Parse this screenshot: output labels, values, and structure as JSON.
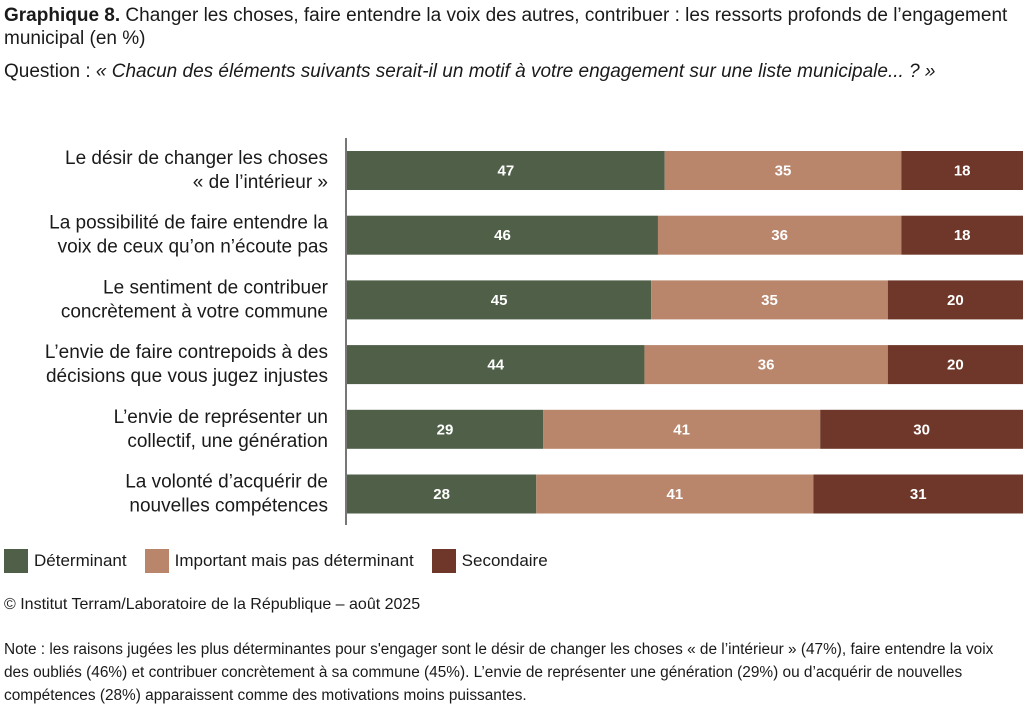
{
  "header": {
    "title_bold": "Graphique 8.",
    "title_rest": " Changer les choses, faire entendre la voix des autres, contribuer : les ressorts profonds de l’engagement municipal (en %)",
    "question_prefix": "Question : ",
    "question_text": "« Chacun des éléments suivants serait-il un motif à votre engagement sur une liste municipale... ? »"
  },
  "chart_data": {
    "type": "bar",
    "orientation": "horizontal",
    "stacked": true,
    "xlim": [
      0,
      100
    ],
    "categories": [
      [
        "Le désir de changer les choses",
        "« de l’intérieur »"
      ],
      [
        "La possibilité de faire entendre la",
        "voix de ceux qu’on n’écoute pas"
      ],
      [
        "Le sentiment de contribuer",
        "concrètement à votre commune"
      ],
      [
        "L’envie de faire contrepoids à des",
        "décisions que vous jugez injustes"
      ],
      [
        "L’envie de représenter un",
        "collectif, une génération"
      ],
      [
        "La volonté d’acquérir de",
        "nouvelles compétences"
      ]
    ],
    "series": [
      {
        "name": "Déterminant",
        "color": "#4f5f48",
        "values": [
          47,
          46,
          45,
          44,
          29,
          28
        ]
      },
      {
        "name": "Important mais pas déterminant",
        "color": "#b9856b",
        "values": [
          35,
          36,
          35,
          36,
          41,
          41
        ]
      },
      {
        "name": "Secondaire",
        "color": "#6e3729",
        "values": [
          18,
          18,
          20,
          20,
          30,
          31
        ]
      }
    ],
    "legend_position": "bottom-left",
    "grid": false
  },
  "footer": {
    "source": "© Institut Terram/Laboratoire de la République – août 2025",
    "note": "Note : les raisons jugées les plus déterminantes pour s'engager sont le désir de changer les choses « de l’intérieur » (47%), faire entendre la voix des oubliés (46%) et contribuer concrètement à sa commune (45%). L’envie de représenter une génération (29%) ou d’acquérir de nouvelles compétences (28%) apparaissent comme des motivations moins puissantes."
  }
}
